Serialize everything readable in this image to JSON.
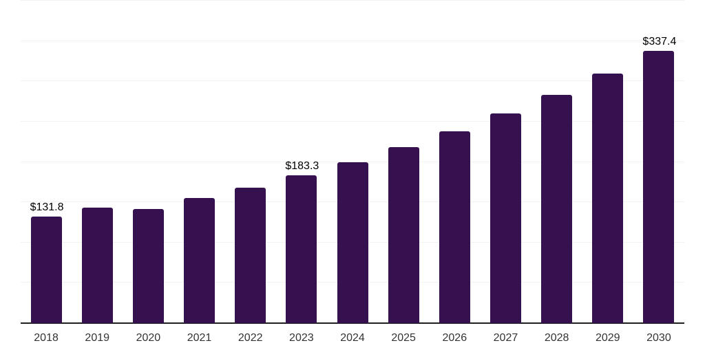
{
  "chart_data": {
    "type": "bar",
    "categories": [
      "2018",
      "2019",
      "2020",
      "2021",
      "2022",
      "2023",
      "2024",
      "2025",
      "2026",
      "2027",
      "2028",
      "2029",
      "2030"
    ],
    "values": [
      131.8,
      143.5,
      142.0,
      155.4,
      168.2,
      183.3,
      200.0,
      218.2,
      238.1,
      259.8,
      283.5,
      309.4,
      337.4
    ],
    "data_labels": [
      "$131.8",
      null,
      null,
      null,
      null,
      "$183.3",
      null,
      null,
      null,
      null,
      null,
      null,
      "$337.4"
    ],
    "title": "",
    "xlabel": "",
    "ylabel": "",
    "ylim": [
      0,
      400
    ],
    "grid_step": 50,
    "grid": "horizontal-only",
    "y_tick_labels_visible": false,
    "legend": "none",
    "colors": {
      "background": "#ffffff",
      "bar": "#351150",
      "grid": "#f2f2f2",
      "axis": "#1f1f1f",
      "value_label": "#000000",
      "tick_label": "#333333"
    }
  }
}
